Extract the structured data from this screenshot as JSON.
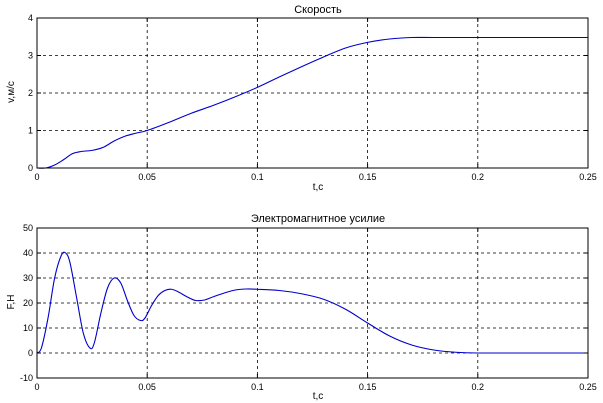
{
  "colors": {
    "line": "#0000cc",
    "axes": "#000000",
    "grid": "#000000",
    "background": "#ffffff"
  },
  "chart_data": [
    {
      "type": "line",
      "title": "Скорость",
      "xlabel": "t,c",
      "ylabel": "v,м/с",
      "xlim": [
        0,
        0.25
      ],
      "ylim": [
        0,
        4
      ],
      "grid": true,
      "xticks": [
        0,
        0.05,
        0.1,
        0.15,
        0.2,
        0.25
      ],
      "xtick_labels": [
        "0",
        "0.05",
        "0.1",
        "0.15",
        "0.2",
        "0.25"
      ],
      "yticks": [
        0,
        1,
        2,
        3,
        4
      ],
      "ytick_labels": [
        "0",
        "1",
        "2",
        "3",
        "4"
      ],
      "series": [
        {
          "x": [
            0,
            0.004,
            0.008,
            0.012,
            0.016,
            0.02,
            0.025,
            0.03,
            0.035,
            0.04,
            0.045,
            0.05,
            0.06,
            0.07,
            0.08,
            0.09,
            0.1,
            0.11,
            0.12,
            0.13,
            0.14,
            0.15,
            0.16,
            0.17,
            0.18,
            0.2,
            0.22,
            0.25
          ],
          "y": [
            0,
            0,
            0.08,
            0.22,
            0.38,
            0.44,
            0.47,
            0.55,
            0.72,
            0.85,
            0.93,
            1.0,
            1.22,
            1.46,
            1.67,
            1.9,
            2.15,
            2.43,
            2.7,
            2.96,
            3.2,
            3.35,
            3.44,
            3.48,
            3.48,
            3.48,
            3.48,
            3.48
          ]
        }
      ]
    },
    {
      "type": "line",
      "title": "Электромагнитное усилие",
      "xlabel": "t,c",
      "ylabel": "F,H",
      "xlim": [
        0,
        0.25
      ],
      "ylim": [
        -10,
        50
      ],
      "grid": true,
      "xticks": [
        0,
        0.05,
        0.1,
        0.15,
        0.2,
        0.25
      ],
      "xtick_labels": [
        "0",
        "0.05",
        "0.1",
        "0.15",
        "0.2",
        "0.25"
      ],
      "yticks": [
        -10,
        0,
        10,
        20,
        30,
        40,
        50
      ],
      "ytick_labels": [
        "-10",
        "0",
        "10",
        "20",
        "30",
        "40",
        "50"
      ],
      "series": [
        {
          "x": [
            0,
            0.002,
            0.005,
            0.008,
            0.011,
            0.013,
            0.015,
            0.018,
            0.021,
            0.024,
            0.026,
            0.029,
            0.032,
            0.035,
            0.038,
            0.041,
            0.044,
            0.047,
            0.049,
            0.052,
            0.055,
            0.058,
            0.061,
            0.064,
            0.068,
            0.072,
            0.076,
            0.08,
            0.085,
            0.09,
            0.095,
            0.1,
            0.11,
            0.12,
            0.13,
            0.14,
            0.15,
            0.16,
            0.17,
            0.18,
            0.19,
            0.2,
            0.22,
            0.25
          ],
          "y": [
            0,
            2,
            14,
            30,
            39,
            40,
            36,
            22,
            8,
            2,
            4,
            16,
            26,
            30,
            28,
            21,
            15,
            13,
            14,
            19,
            23,
            25,
            25.5,
            24.5,
            22.5,
            21,
            21.2,
            22.5,
            24,
            25.2,
            25.6,
            25.5,
            25,
            23.7,
            21.5,
            17.5,
            12,
            6.8,
            3.2,
            1.2,
            0.3,
            0,
            0,
            0
          ]
        }
      ]
    }
  ]
}
